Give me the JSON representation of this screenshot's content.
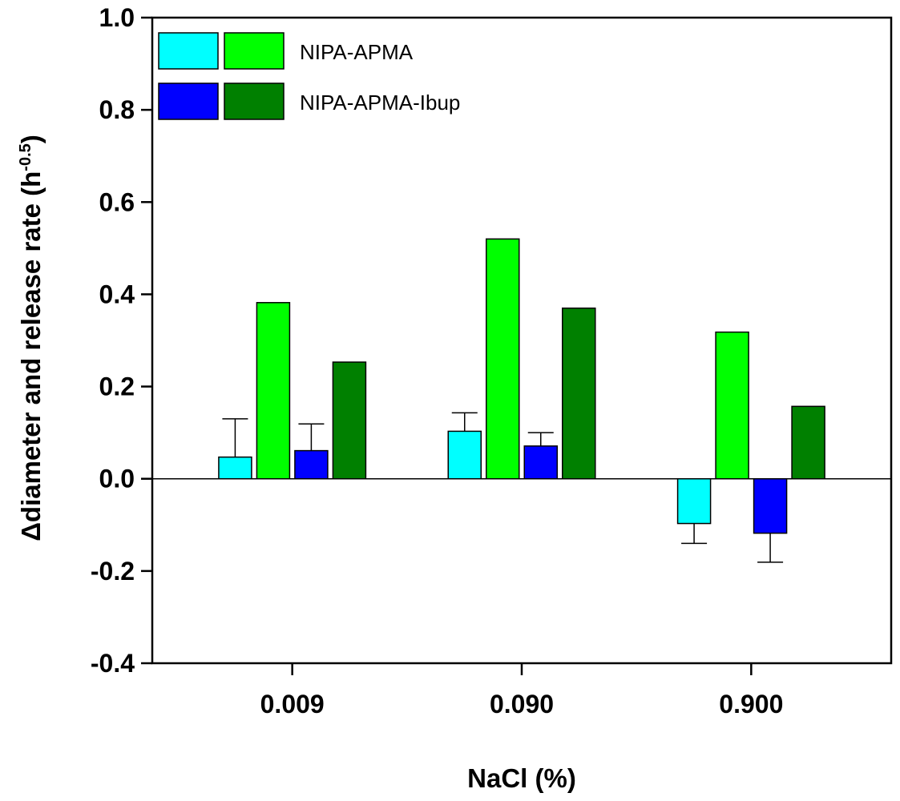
{
  "chart_data": {
    "type": "bar",
    "xlabel": "NaCl (%)",
    "ylabel_main": "Δdiameter and release rate (h",
    "ylabel_sup": "-0.5",
    "ylabel_close": ")",
    "ylim": [
      -0.4,
      1.0
    ],
    "yticks": [
      -0.4,
      -0.2,
      0.0,
      0.2,
      0.4,
      0.6,
      0.8,
      1.0
    ],
    "ytick_labels": [
      "-0.4",
      "-0.2",
      "0.0",
      "0.2",
      "0.4",
      "0.6",
      "0.8",
      "1.0"
    ],
    "categories": [
      "0.009",
      "0.090",
      "0.900"
    ],
    "grid": false,
    "legend": {
      "placement": "top-left",
      "entries": [
        {
          "label": "NIPA-APMA",
          "colors": [
            "#00FFFF",
            "#00FF00"
          ]
        },
        {
          "label": "NIPA-APMA-Ibup",
          "colors": [
            "#0000FF",
            "#008000"
          ]
        }
      ]
    },
    "series": [
      {
        "color": "#00FFFF",
        "values": [
          0.047,
          0.103,
          -0.097
        ],
        "errors": [
          0.083,
          0.04,
          0.043
        ]
      },
      {
        "color": "#00FF00",
        "values": [
          0.382,
          0.52,
          0.318
        ],
        "errors": [
          0,
          0,
          0
        ]
      },
      {
        "color": "#0000FF",
        "values": [
          0.061,
          0.071,
          -0.118
        ],
        "errors": [
          0.058,
          0.029,
          0.063
        ]
      },
      {
        "color": "#008000",
        "values": [
          0.253,
          0.37,
          0.157
        ],
        "errors": [
          0,
          0,
          0
        ]
      }
    ]
  }
}
